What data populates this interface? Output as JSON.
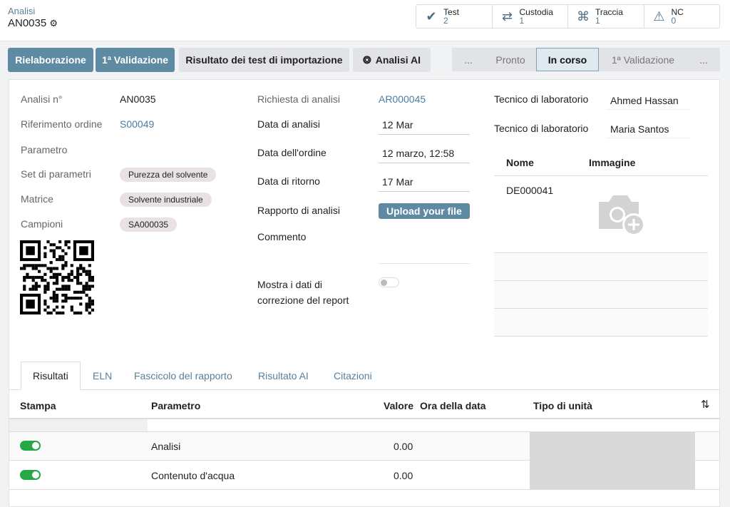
{
  "header": {
    "breadcrumb": "Analisi",
    "record": "AN0035",
    "gear_icon": "gear-icon"
  },
  "stats": [
    {
      "icon": "check-icon",
      "label": "Test",
      "count": "2"
    },
    {
      "icon": "exchange-icon",
      "label": "Custodia",
      "count": "1"
    },
    {
      "icon": "sitemap-icon",
      "label": "Traccia",
      "count": "1"
    },
    {
      "icon": "warning-icon",
      "label": "NC",
      "count": "0"
    }
  ],
  "actions": {
    "rework": "Rielaborazione",
    "validation": "1ª Validazione",
    "import_results": "Risultato dei test di importazione",
    "ai": "Analisi AI"
  },
  "status": {
    "steps": [
      "...",
      "Pronto",
      "In corso",
      "1ª Validazione",
      "..."
    ],
    "active": "In corso"
  },
  "form": {
    "analysis_no_label": "Analisi n°",
    "analysis_no": "AN0035",
    "order_ref_label": "Riferimento ordine",
    "order_ref": "S00049",
    "parameter_label": "Parametro",
    "param_set_label": "Set di parametri",
    "param_set": "Purezza del solvente",
    "matrix_label": "Matrice",
    "matrix": "Solvente industriale",
    "samples_label": "Campioni",
    "sample": "SA000035",
    "request_label": "Richiesta di analisi",
    "request": "AR000045",
    "analysis_date_label": "Data di analisi",
    "analysis_date": "12 Mar",
    "order_date_label": "Data dell'ordine",
    "order_date": "12 marzo, 12:58",
    "return_date_label": "Data di ritorno",
    "return_date": "17 Mar",
    "report_label": "Rapporto di analisi",
    "upload": "Upload your file",
    "comment_label": "Commento",
    "show_correction_label_1": "Mostra i dati di",
    "show_correction_label_2": "correzione del report",
    "show_correction": false,
    "tech_label": "Tecnico di laboratorio",
    "tech1": "Ahmed Hassan",
    "tech2": "Maria Santos",
    "docs_headers": [
      "Nome",
      "Immagine"
    ],
    "doc_name": "DE000041"
  },
  "tabs": [
    "Risultati",
    "ELN",
    "Fascicolo del rapporto",
    "Risultato AI",
    "Citazioni"
  ],
  "results": {
    "headers": [
      "Stampa",
      "Parametro",
      "Valore",
      "Ora della data",
      "Tipo di unità"
    ],
    "rows": [
      {
        "print": true,
        "param": "Analisi",
        "value": "0.00"
      },
      {
        "print": true,
        "param": "Contenuto d'acqua",
        "value": "0.00"
      }
    ]
  },
  "colors": {
    "primary": "#5f8aa3",
    "toggle_on": "#28a745",
    "link": "#4d7da0"
  }
}
